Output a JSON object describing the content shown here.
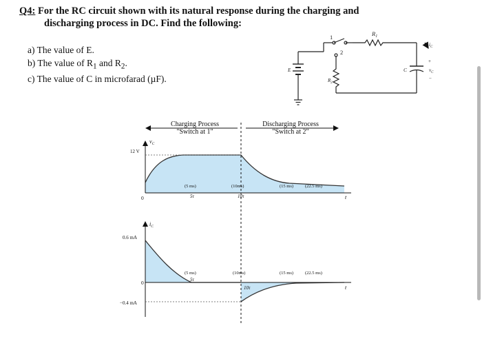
{
  "question": {
    "number": "Q4:",
    "line1": "For the RC circuit shown with its natural response during the charging and",
    "line2": "discharging process in DC. Find the following:"
  },
  "parts": [
    {
      "id": "a)",
      "text": "The value of E."
    },
    {
      "id": "b)",
      "text_pre": "The value of R",
      "sub1": "1",
      "mid": " and R",
      "sub2": "2",
      "post": "."
    },
    {
      "id": "c)",
      "text": "The value of C in microfarad (µF)."
    }
  ],
  "circuit": {
    "switch_pos1": "1",
    "switch_pos2": "2",
    "r1": "R",
    "r1_sub": "1",
    "r2": "R",
    "r2_sub": "2",
    "source": "E",
    "cap": "C",
    "ic": "i",
    "ic_sub": "C",
    "vc": "v",
    "vc_sub": "C",
    "plus": "+",
    "minus": "−"
  },
  "plots": {
    "charging_label": "Charging Process",
    "charging_sub": "\"Switch at 1\"",
    "discharging_label": "Discharging Process",
    "discharging_sub": "\"Switch at 2\"",
    "vc_axis": "v",
    "vc_axis_sub": "C",
    "ic_axis": "i",
    "ic_axis_sub": "C",
    "t_label": "t",
    "zero": "0",
    "v_level": "12 V",
    "i_pos_level": "0.6 mA",
    "i_neg_level": "−0.4 mA",
    "t5": "(5 ms)",
    "t10": "(10ms)",
    "t15": "(15 ms)",
    "t225": "(22.5 ms)",
    "tau5": "5τ",
    "tau10": "10τ",
    "fill_color": "#c7e4f5",
    "curve_color": "#333333"
  }
}
